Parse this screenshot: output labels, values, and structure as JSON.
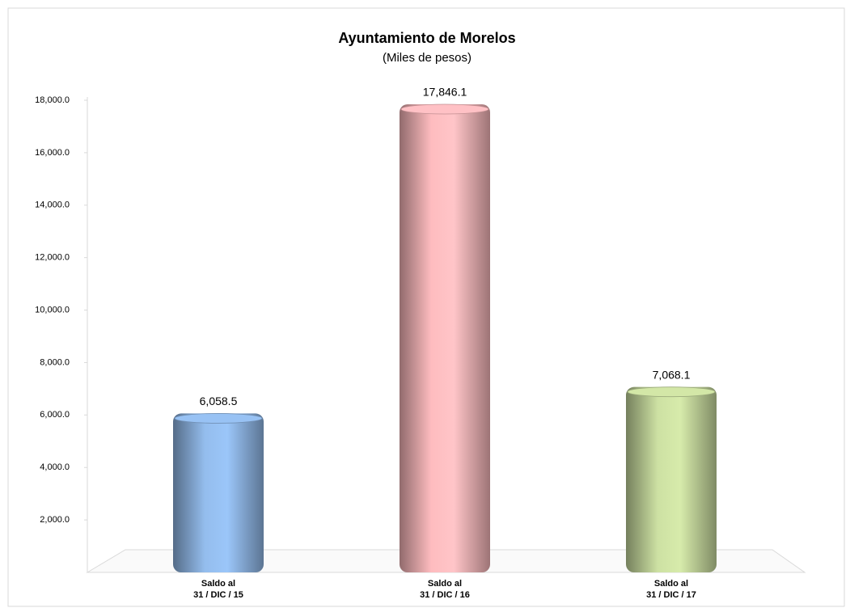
{
  "chart_data": {
    "type": "bar",
    "title": "Ayuntamiento de Morelos",
    "subtitle": "(Miles de pesos)",
    "categories": [
      [
        "Saldo al",
        "31 / DIC / 15"
      ],
      [
        "Saldo al",
        "31 / DIC / 16"
      ],
      [
        "Saldo al",
        "31 / DIC / 17"
      ]
    ],
    "values": [
      6058.5,
      17846.1,
      7068.1
    ],
    "value_labels": [
      "6,058.5",
      "17,846.1",
      "7,068.1"
    ],
    "colors": [
      "#8db4e2",
      "#f2b3b6",
      "#c3d69b"
    ],
    "ylim": [
      0,
      18000
    ],
    "yticks": [
      {
        "value": 2000,
        "label": "2,000.0"
      },
      {
        "value": 4000,
        "label": "4,000.0"
      },
      {
        "value": 6000,
        "label": "6,000.0"
      },
      {
        "value": 8000,
        "label": "8,000.0"
      },
      {
        "value": 10000,
        "label": "10,000.0"
      },
      {
        "value": 12000,
        "label": "12,000.0"
      },
      {
        "value": 14000,
        "label": "14,000.0"
      },
      {
        "value": 16000,
        "label": "16,000.0"
      },
      {
        "value": 18000,
        "label": "18,000.0"
      }
    ]
  }
}
